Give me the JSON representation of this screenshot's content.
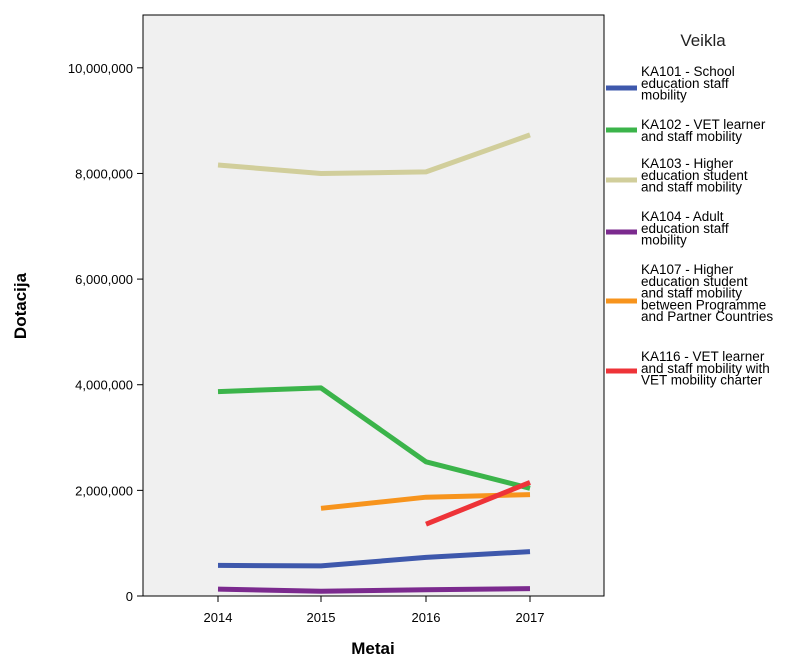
{
  "chart_data": {
    "type": "line",
    "xlabel": "Metai",
    "ylabel": "Dotacija",
    "legend_title": "Veikla",
    "legend_position": "right",
    "x": [
      "2014",
      "2015",
      "2016",
      "2017"
    ],
    "ylim": [
      0,
      11000000
    ],
    "yticks": [
      0,
      2000000,
      4000000,
      6000000,
      8000000,
      10000000
    ],
    "ytick_labels": [
      "0",
      "2,000,000",
      "4,000,000",
      "6,000,000",
      "8,000,000",
      "10,000,000"
    ],
    "grid": false,
    "plot_background": "#f0f0f0",
    "series": [
      {
        "name": "KA101 - School education staff mobility",
        "legend_lines": [
          "KA101 - School",
          "education staff",
          "mobility"
        ],
        "color": "#3e58ac",
        "values": [
          580000,
          570000,
          730000,
          840000
        ]
      },
      {
        "name": "KA102 - VET learner and staff mobility",
        "legend_lines": [
          "KA102 - VET learner",
          "and staff mobility"
        ],
        "color": "#3bb44a",
        "values": [
          3870000,
          3940000,
          2540000,
          2040000
        ]
      },
      {
        "name": "KA103 - Higher education student and staff mobility",
        "legend_lines": [
          "KA103 - Higher",
          "education student",
          "and staff mobility"
        ],
        "color": "#d1ce9b",
        "values": [
          8160000,
          8000000,
          8030000,
          8730000
        ]
      },
      {
        "name": "KA104 - Adult education staff mobility",
        "legend_lines": [
          "KA104 - Adult",
          "education staff",
          "mobility"
        ],
        "color": "#7b2a8e",
        "values": [
          130000,
          90000,
          120000,
          140000
        ]
      },
      {
        "name": "KA107 - Higher education student and staff mobility between Programme and Partner Countries",
        "legend_lines": [
          "KA107 - Higher",
          "education student",
          "and staff mobility",
          "between Programme",
          "and Partner Countries"
        ],
        "color": "#f7941d",
        "values": [
          null,
          1660000,
          1870000,
          1920000
        ]
      },
      {
        "name": "KA116 - VET learner and staff mobility with VET mobility charter",
        "legend_lines": [
          "KA116 - VET learner",
          "and staff mobility with",
          "VET mobility charter"
        ],
        "color": "#ee3338",
        "values": [
          null,
          null,
          1360000,
          2150000
        ]
      }
    ]
  }
}
